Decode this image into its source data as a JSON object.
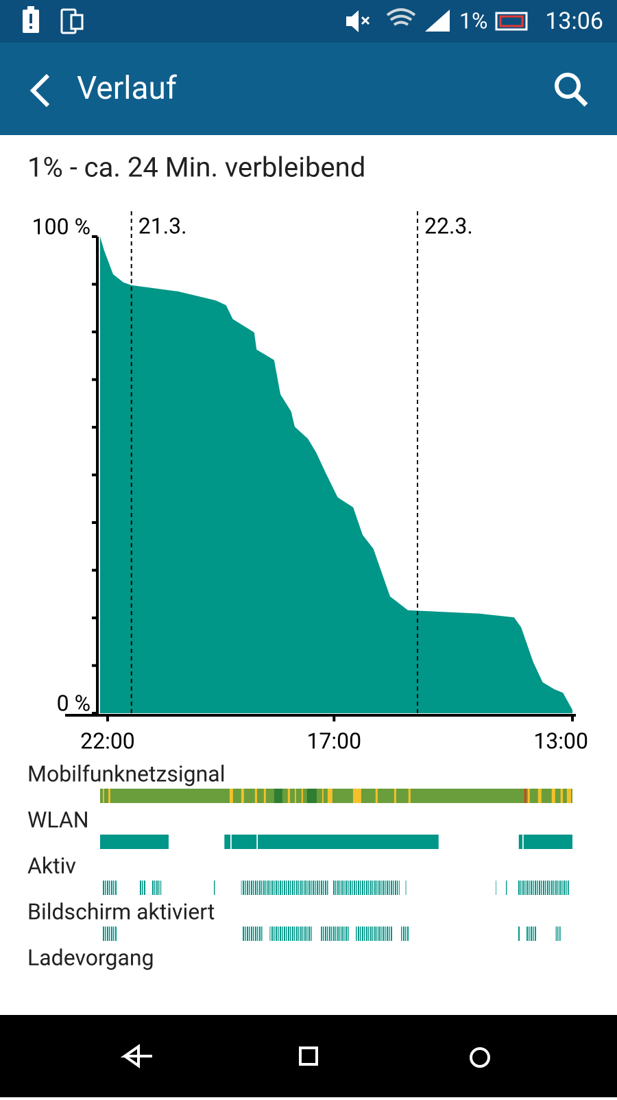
{
  "status_bar": {
    "battery": "1%",
    "time": "13:06"
  },
  "app_bar": {
    "title": "Verlauf"
  },
  "summary": "1% - ca. 24 Min. verbleibend",
  "chart_data": {
    "type": "area",
    "color": "#009688",
    "x": [
      -0.63,
      -0.29,
      0.46,
      1.32,
      2.0,
      5.9,
      9.08,
      9.94,
      10.5,
      11.4,
      12.3,
      12.5,
      13.97,
      14.5,
      15.4,
      15.7,
      16.8,
      17.5,
      18.3,
      19.3,
      20.6,
      21.4,
      22.3,
      22.9,
      23.7,
      25.2,
      31.2,
      34.1,
      34.7,
      35.7,
      36.5,
      37.5,
      38.2,
      39.0
    ],
    "values": [
      100,
      97.1,
      92.1,
      90.4,
      89.8,
      88.5,
      86.6,
      85.6,
      82.7,
      81.3,
      79.9,
      76.3,
      74.1,
      66.9,
      63.3,
      60.1,
      57.6,
      54.7,
      50.4,
      45.3,
      43.2,
      37.4,
      34.5,
      30.2,
      24.5,
      21.6,
      20.9,
      20.1,
      18.0,
      10.8,
      6.5,
      5.0,
      4.3,
      0.7
    ],
    "xlim": [
      -0.63,
      39.0
    ],
    "ylim": [
      0,
      100
    ],
    "xticks": [
      {
        "value": 0,
        "label": "22:00"
      },
      {
        "value": 19,
        "label": "17:00"
      },
      {
        "value": 39,
        "label": "13:00"
      }
    ],
    "yticks": [
      {
        "value": 0,
        "label": "0 %"
      },
      {
        "value": 100,
        "label": "100 %"
      }
    ],
    "yminor_ticks": [
      10,
      20,
      30,
      40,
      50,
      60,
      70,
      80,
      90
    ],
    "date_markers": [
      {
        "value": 2,
        "label": "21.3."
      },
      {
        "value": 26,
        "label": "22.3."
      }
    ],
    "tracks": [
      {
        "label": "Mobilfunknetzsignal",
        "bands": [
          {
            "color": "#6a9e3c",
            "spans": [
              [
                -0.63,
                39.0
              ]
            ]
          },
          {
            "color": "#f5c02a",
            "spans": [
              [
                -0.4,
                -0.29
              ],
              [
                0.06,
                0.23
              ],
              [
                10.24,
                10.52
              ],
              [
                11.21,
                11.44
              ],
              [
                12.36,
                12.54
              ],
              [
                13.11,
                13.28
              ],
              [
                14.2,
                14.32
              ],
              [
                15.12,
                15.3
              ],
              [
                15.7,
                15.81
              ],
              [
                16.27,
                16.39
              ],
              [
                18.0,
                18.11
              ],
              [
                18.46,
                18.86
              ],
              [
                20.59,
                21.28
              ],
              [
                22.48,
                22.66
              ],
              [
                24.04,
                24.21
              ],
              [
                25.24,
                25.42
              ],
              [
                35.25,
                35.42
              ],
              [
                36.11,
                36.4
              ],
              [
                37.26,
                37.55
              ],
              [
                38.0,
                38.2
              ],
              [
                38.53,
                38.89
              ]
            ]
          },
          {
            "color": "#2e7d32",
            "spans": [
              [
                13.97,
                14.66
              ],
              [
                16.73,
                17.54
              ]
            ]
          },
          {
            "color": "#d84315",
            "spans": [
              [
                34.96,
                35.14
              ]
            ]
          }
        ]
      },
      {
        "label": "WLAN",
        "bands": [
          {
            "color": "#009688",
            "spans": [
              [
                -0.63,
                5.12
              ],
              [
                9.8,
                10.3
              ],
              [
                10.4,
                12.5
              ],
              [
                12.6,
                27.77
              ],
              [
                34.5,
                34.8
              ],
              [
                34.9,
                39.0
              ]
            ]
          }
        ]
      },
      {
        "label": "Aktiv",
        "bands": [
          {
            "color": "#009688",
            "spans": [
              [
                -0.4,
                0.8
              ],
              [
                2.7,
                3.2
              ],
              [
                3.7,
                4.5
              ],
              [
                8.9,
                9.0
              ],
              [
                11.2,
                18.5
              ],
              [
                18.9,
                24.5
              ],
              [
                25.0,
                25.1
              ],
              [
                32.5,
                32.6
              ],
              [
                33.4,
                33.5
              ],
              [
                34.4,
                38.7
              ]
            ]
          }
        ]
      },
      {
        "label": "Bildschirm aktiviert",
        "bands": [
          {
            "color": "#009688",
            "spans": [
              [
                -0.4,
                0.8
              ],
              [
                11.3,
                13.0
              ],
              [
                13.6,
                17.2
              ],
              [
                17.9,
                20.3
              ],
              [
                20.8,
                23.9
              ],
              [
                24.6,
                25.3
              ],
              [
                34.4,
                34.6
              ],
              [
                35.1,
                36.0
              ],
              [
                37.6,
                38.0
              ]
            ]
          }
        ]
      },
      {
        "label": "Ladevorgang",
        "bands": []
      }
    ]
  }
}
